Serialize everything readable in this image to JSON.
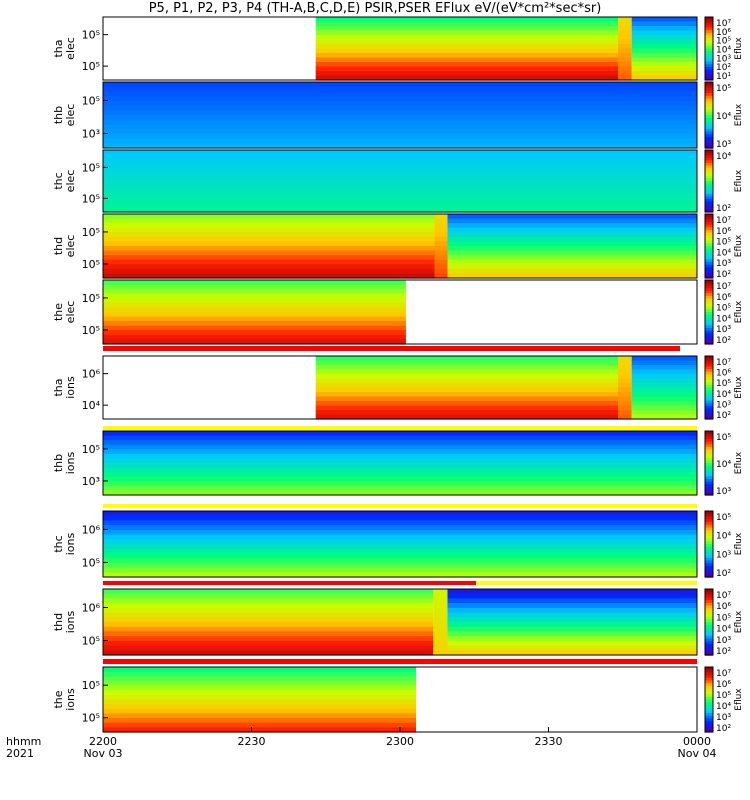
{
  "title": "P5, P1, P2, P3, P4 (TH-A,B,C,D,E) PSIR,PSER EFlux eV/(eV*cm²*sec*sr)",
  "chart_data": {
    "type": "heatmap",
    "x_range": [
      "2200",
      "0000"
    ],
    "x_ticks": [
      "2200",
      "2230",
      "2300",
      "2330",
      "0000"
    ],
    "x_date_labels": [
      "Nov 03",
      "",
      "",
      "",
      "Nov 04"
    ],
    "x_axis_labels": [
      "hhmm",
      "2021"
    ],
    "colorbar_label": "Eflux",
    "colors": {
      "low": "#1a00ff",
      "mid": "#00ff66",
      "high": "#ff0000",
      "max": "#8b0000"
    },
    "panels": [
      {
        "name": "tha elec",
        "line1": "tha",
        "line2": "elec",
        "y_ticks": [
          "10⁵",
          "10⁵"
        ],
        "cbar_ticks": [
          "10⁷",
          "10⁶",
          "10⁵",
          "10⁴",
          "10³",
          "10²",
          "10¹"
        ]
      },
      {
        "name": "thb elec",
        "line1": "thb",
        "line2": "elec",
        "y_ticks": [
          "10⁵",
          "10³"
        ],
        "cbar_ticks": [
          "10⁵",
          "10⁴",
          "10³"
        ]
      },
      {
        "name": "thc elec",
        "line1": "thc",
        "line2": "elec",
        "y_ticks": [
          "10⁵",
          "10⁵"
        ],
        "cbar_ticks": [
          "10⁴",
          "10²"
        ]
      },
      {
        "name": "thd elec",
        "line1": "thd",
        "line2": "elec",
        "y_ticks": [
          "10⁵",
          "10⁵"
        ],
        "cbar_ticks": [
          "10⁷",
          "10⁶",
          "10⁵",
          "10⁴",
          "10³",
          "10²"
        ]
      },
      {
        "name": "the elec",
        "line1": "the",
        "line2": "elec",
        "y_ticks": [
          "10⁵",
          "10⁵"
        ],
        "cbar_ticks": [
          "10⁷",
          "10⁶",
          "10⁵",
          "10⁴",
          "10³",
          "10²"
        ]
      },
      {
        "name": "tha ions",
        "line1": "tha",
        "line2": "ions",
        "y_ticks": [
          "10⁶",
          "10⁴"
        ],
        "cbar_ticks": [
          "10⁷",
          "10⁶",
          "10⁵",
          "10⁴",
          "10³",
          "10²"
        ]
      },
      {
        "name": "thb ions",
        "line1": "thb",
        "line2": "ions",
        "y_ticks": [
          "10⁵",
          "10³"
        ],
        "cbar_ticks": [
          "10⁵",
          "10⁴",
          "10³"
        ]
      },
      {
        "name": "thc ions",
        "line1": "thc",
        "line2": "ions",
        "y_ticks": [
          "10⁶",
          "10⁵"
        ],
        "cbar_ticks": [
          "10⁵",
          "10⁴",
          "10³",
          "10²"
        ]
      },
      {
        "name": "thd ions",
        "line1": "thd",
        "line2": "ions",
        "y_ticks": [
          "10⁶",
          "10⁵"
        ],
        "cbar_ticks": [
          "10⁷",
          "10⁶",
          "10⁵",
          "10⁴",
          "10³",
          "10²"
        ]
      },
      {
        "name": "the ions",
        "line1": "the",
        "line2": "ions",
        "y_ticks": [
          "10⁵",
          "10⁵"
        ],
        "cbar_ticks": [
          "10⁷",
          "10⁶",
          "10⁵",
          "10⁴",
          "10³",
          "10²"
        ]
      }
    ]
  }
}
